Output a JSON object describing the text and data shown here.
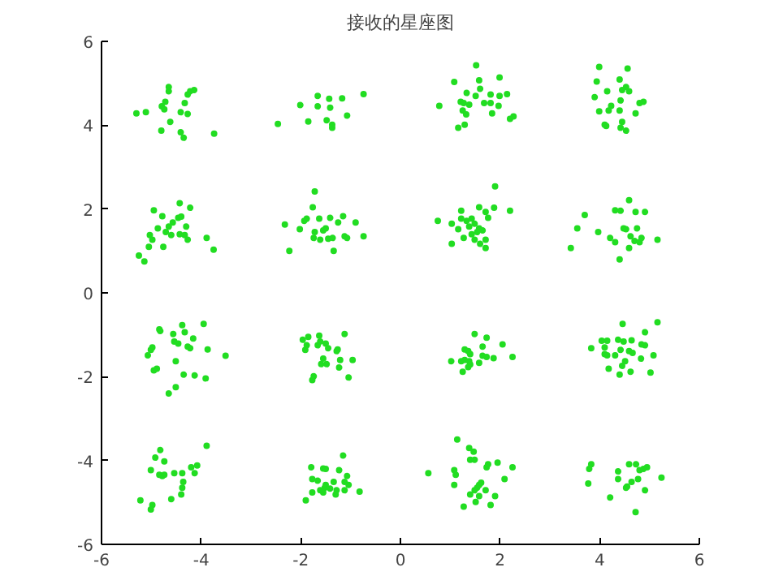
{
  "chart_data": {
    "type": "scatter",
    "title": "接收的星座图",
    "x": [
      -5.3,
      -5.11,
      -4.79,
      -4.74,
      -4.65,
      -4.65,
      -4.72,
      -4.33,
      -4.27,
      -4.22,
      -4.14,
      -4.41,
      -4.27,
      -4.62,
      -4.8,
      -4.41,
      -4.35,
      -3.74,
      -2.46,
      -2.01,
      -1.85,
      -1.66,
      -1.66,
      -1.43,
      -1.41,
      -1.17,
      -0.74,
      -1.07,
      -1.48,
      -1.37,
      -1.37,
      -4.95,
      -4.78,
      -4.43,
      -4.22,
      -4.46,
      -4.4,
      -4.57,
      -4.65,
      -4.87,
      -4.71,
      -4.6,
      -4.43,
      -4.33,
      -4.27,
      -3.89,
      -3.75,
      -5.03,
      -4.98,
      -5.05,
      -4.76,
      -5.25,
      -5.14,
      -4.3,
      -1.72,
      -1.76,
      -2.32,
      -1.93,
      -1.88,
      -1.63,
      -1.41,
      -1.15,
      -0.9,
      -1.25,
      -1.5,
      -1.55,
      -1.72,
      -1.74,
      -1.61,
      -1.45,
      -1.36,
      -1.12,
      -1.07,
      -0.74,
      -2.23,
      -1.34,
      -2.02,
      1.52,
      1.08,
      1.58,
      1.99,
      1.6,
      1.33,
      1.51,
      1.21,
      1.27,
      1.38,
      1.25,
      1.32,
      1.68,
      1.81,
      1.81,
      1.99,
      2.14,
      1.97,
      1.84,
      0.78,
      2.2,
      2.27,
      1.16,
      1.29,
      3.99,
      4.56,
      3.94,
      4.4,
      4.15,
      4.45,
      4.53,
      4.59,
      3.9,
      4.42,
      4.23,
      4.18,
      3.99,
      4.8,
      4.88,
      4.72,
      4.4,
      4.45,
      4.1,
      4.13,
      4.42,
      4.53,
      1.9,
      1.22,
      1.58,
      1.71,
      1.88,
      2.2,
      0.75,
      1.03,
      1.22,
      1.33,
      1.43,
      1.49,
      1.38,
      1.16,
      1.58,
      1.65,
      1.76,
      1.43,
      1.54,
      1.27,
      1.49,
      1.71,
      1.03,
      1.6,
      1.71,
      4.59,
      3.7,
      4.31,
      4.42,
      4.72,
      4.91,
      3.55,
      3.97,
      4.48,
      4.53,
      4.75,
      4.21,
      4.31,
      4.62,
      4.7,
      4.84,
      4.8,
      5.16,
      3.42,
      4.59,
      4.4,
      -4.84,
      -4.82,
      -4.56,
      -4.38,
      -4.33,
      -4.16,
      -3.95,
      -4.98,
      -5.01,
      -5.07,
      -4.54,
      -4.46,
      -4.27,
      -4.22,
      -3.87,
      -3.51,
      -4.51,
      -4.89,
      -4.95,
      -4.35,
      -4.13,
      -3.91,
      -4.51,
      -4.65,
      -1.96,
      -1.88,
      -1.91,
      -1.85,
      -1.63,
      -1.61,
      -1.5,
      -1.66,
      -1.45,
      -1.28,
      -1.26,
      -1.12,
      -1.55,
      -1.59,
      -1.48,
      -1.21,
      -0.96,
      -1.23,
      -1.74,
      -1.77,
      -1.04,
      -4.82,
      -3.89,
      -4.92,
      -4.74,
      -5.01,
      -4.84,
      -4.78,
      -4.74,
      -4.54,
      -4.38,
      -4.2,
      -4.08,
      -4.13,
      -4.36,
      -4.38,
      -4.4,
      -4.6,
      -5.22,
      -4.98,
      -5.01,
      -1.15,
      -1.79,
      -1.55,
      -1.5,
      -1.23,
      -1.77,
      -1.66,
      -1.5,
      -1.34,
      -1.07,
      -1.12,
      -1.04,
      -1.61,
      -1.52,
      -1.41,
      -1.28,
      -1.12,
      -1.55,
      -1.77,
      -0.82,
      -1.9,
      -1.3,
      1.49,
      1.73,
      1.29,
      1.36,
      1.65,
      2.05,
      1.4,
      1.65,
      1.73,
      1.87,
      2.25,
      1.02,
      1.22,
      1.29,
      1.38,
      1.4,
      1.36,
      1.25,
      1.58,
      5.16,
      4.46,
      4.91,
      4.04,
      4.15,
      3.83,
      4.1,
      4.37,
      4.48,
      4.64,
      4.84,
      4.91,
      4.42,
      4.59,
      4.66,
      4.15,
      4.1,
      4.31,
      4.83,
      5.08,
      4.51,
      4.45,
      4.18,
      4.62,
      4.4,
      5.02,
      1.14,
      1.38,
      1.47,
      1.4,
      1.49,
      1.76,
      1.73,
      1.95,
      2.25,
      0.56,
      1.08,
      1.11,
      2.09,
      1.08,
      1.58,
      1.62,
      1.54,
      1.49,
      1.71,
      1.4,
      1.58,
      1.9,
      1.51,
      1.27,
      1.81,
      3.83,
      3.79,
      4.59,
      4.73,
      4.8,
      4.88,
      4.95,
      4.37,
      4.37,
      4.64,
      4.77,
      5.24,
      3.77,
      4.55,
      4.53,
      4.91,
      4.21,
      4.72
    ],
    "values": [
      4.28,
      4.31,
      4.45,
      4.38,
      4.91,
      4.81,
      4.56,
      4.53,
      4.73,
      4.81,
      4.84,
      4.31,
      4.27,
      4.08,
      3.87,
      3.83,
      3.7,
      3.8,
      4.03,
      4.48,
      4.09,
      4.7,
      4.45,
      4.63,
      4.42,
      4.64,
      4.74,
      4.23,
      4.12,
      4.01,
      3.94,
      1.97,
      1.83,
      2.14,
      2.03,
      1.79,
      1.82,
      1.68,
      1.58,
      1.54,
      1.45,
      1.38,
      1.4,
      1.38,
      1.27,
      1.31,
      1.03,
      1.38,
      1.27,
      1.1,
      1.1,
      0.89,
      0.75,
      1.58,
      2.42,
      2.04,
      1.63,
      1.72,
      1.77,
      1.77,
      1.79,
      1.83,
      1.68,
      1.68,
      1.54,
      1.49,
      1.45,
      1.31,
      1.27,
      1.29,
      1.31,
      1.35,
      1.31,
      1.35,
      1.0,
      1.0,
      1.52,
      5.43,
      5.03,
      5.07,
      5.14,
      4.87,
      4.77,
      4.7,
      4.56,
      4.53,
      4.49,
      4.35,
      4.26,
      4.53,
      4.53,
      4.73,
      4.7,
      4.74,
      4.46,
      4.28,
      4.46,
      4.15,
      4.21,
      3.94,
      4.01,
      5.39,
      5.35,
      5.04,
      5.09,
      4.81,
      4.84,
      4.91,
      4.81,
      4.67,
      4.59,
      4.46,
      4.35,
      4.33,
      4.53,
      4.56,
      4.28,
      4.35,
      4.08,
      4.01,
      3.98,
      3.94,
      3.87,
      2.54,
      1.96,
      2.04,
      1.93,
      2.03,
      1.96,
      1.72,
      1.65,
      1.77,
      1.72,
      1.77,
      1.65,
      1.58,
      1.52,
      1.54,
      1.49,
      1.79,
      1.4,
      1.45,
      1.31,
      1.27,
      1.27,
      1.17,
      1.17,
      1.07,
      2.21,
      1.86,
      1.97,
      1.96,
      1.93,
      1.93,
      1.54,
      1.45,
      1.54,
      1.52,
      1.54,
      1.31,
      1.21,
      1.35,
      1.24,
      1.31,
      1.21,
      1.27,
      1.07,
      1.07,
      0.8,
      -0.87,
      -0.91,
      -0.98,
      -0.77,
      -0.94,
      -1.09,
      -0.74,
      -1.3,
      -1.36,
      -1.49,
      -1.16,
      -1.21,
      -1.28,
      -1.32,
      -1.35,
      -1.5,
      -1.63,
      -1.81,
      -1.85,
      -1.95,
      -1.97,
      -2.04,
      -2.25,
      -2.4,
      -1.12,
      -1.25,
      -1.36,
      -1.05,
      -1.02,
      -1.16,
      -1.21,
      -1.25,
      -1.32,
      -1.39,
      -1.35,
      -0.98,
      -1.57,
      -1.7,
      -1.7,
      -1.6,
      -1.6,
      -1.78,
      -1.99,
      -2.08,
      -2.02,
      -3.75,
      -3.65,
      -3.93,
      -4.02,
      -4.23,
      -4.34,
      -4.37,
      -4.34,
      -4.3,
      -4.3,
      -4.16,
      -4.12,
      -4.3,
      -4.51,
      -4.65,
      -4.81,
      -4.92,
      -4.95,
      -5.06,
      -5.17,
      -3.88,
      -4.16,
      -4.19,
      -4.2,
      -4.23,
      -4.44,
      -4.48,
      -4.58,
      -4.51,
      -4.37,
      -4.51,
      -4.58,
      -4.71,
      -4.65,
      -4.67,
      -4.71,
      -4.71,
      -4.76,
      -4.76,
      -4.74,
      -4.95,
      -4.81,
      -0.98,
      -1.07,
      -1.35,
      -1.39,
      -1.28,
      -1.23,
      -1.46,
      -1.5,
      -1.53,
      -1.56,
      -1.53,
      -1.63,
      -1.63,
      -1.6,
      -1.63,
      -1.71,
      -1.77,
      -1.88,
      -1.67,
      -0.7,
      -0.74,
      -0.94,
      -1.14,
      -1.14,
      -1.32,
      -1.3,
      -1.12,
      -1.16,
      -1.13,
      -1.23,
      -1.25,
      -1.36,
      -1.39,
      -1.43,
      -1.49,
      -1.46,
      -1.49,
      -1.57,
      -1.49,
      -1.63,
      -1.74,
      -1.81,
      -1.88,
      -1.95,
      -1.9,
      -3.5,
      -3.7,
      -3.79,
      -3.98,
      -3.98,
      -4.09,
      -4.16,
      -4.05,
      -4.16,
      -4.3,
      -4.23,
      -4.34,
      -4.44,
      -4.58,
      -4.58,
      -4.53,
      -4.65,
      -4.71,
      -4.71,
      -4.81,
      -4.85,
      -4.85,
      -4.99,
      -5.1,
      -5.06,
      -4.09,
      -4.2,
      -4.09,
      -4.09,
      -4.23,
      -4.2,
      -4.16,
      -4.26,
      -4.44,
      -4.51,
      -4.44,
      -4.41,
      -4.55,
      -4.62,
      -4.65,
      -4.71,
      -4.88,
      -5.23
    ],
    "color": "#22dd22",
    "marker": "circle",
    "xlim": [
      -6,
      6
    ],
    "ylim": [
      -6,
      6
    ],
    "xticks": [
      -6,
      -4,
      -2,
      0,
      2,
      4,
      6
    ],
    "yticks": [
      -6,
      -4,
      -2,
      0,
      2,
      4,
      6
    ],
    "grid": false
  }
}
